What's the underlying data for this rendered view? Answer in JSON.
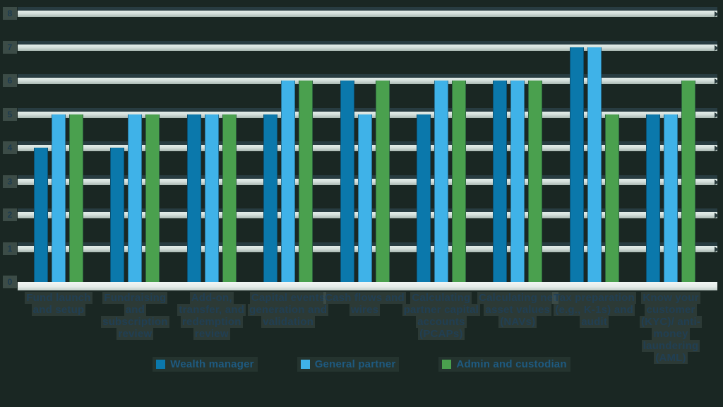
{
  "chart_data": {
    "type": "bar",
    "title": "",
    "categories": [
      "Fund launch and setup",
      "Fundraising and subscription review",
      "Add-on, transfer, and redemption review",
      "Capital events generation and validation",
      "Cash flows and wires",
      "Calculating partner capital accounts (PCAPs)",
      "Calculating net asset values (NAVs)",
      "Tax preparation (e.g., K-1s) and audit",
      "Know your customer (KYC)/ anti-money laundering (AML)"
    ],
    "series": [
      {
        "name": "Wealth manager",
        "color": "#0b78ab",
        "values": [
          4,
          4,
          5,
          5,
          6,
          5,
          6,
          7,
          5
        ]
      },
      {
        "name": "General partner",
        "color": "#3fb2e8",
        "values": [
          5,
          5,
          5,
          6,
          5,
          6,
          6,
          7,
          5
        ]
      },
      {
        "name": "Admin and custodian",
        "color": "#4aa04e",
        "values": [
          5,
          5,
          5,
          6,
          6,
          6,
          6,
          5,
          6
        ]
      }
    ],
    "ylim": [
      0,
      8
    ],
    "yticks": [
      0,
      1,
      2,
      3,
      4,
      5,
      6,
      7,
      8
    ],
    "grid": true,
    "legend_position": "bottom"
  },
  "colors": {
    "background": "#1a2723",
    "gridline": "#d5e0dc",
    "axis_text": "#1c3a4e",
    "category_text": "#213f53",
    "legend_text": "#1e5a80"
  }
}
